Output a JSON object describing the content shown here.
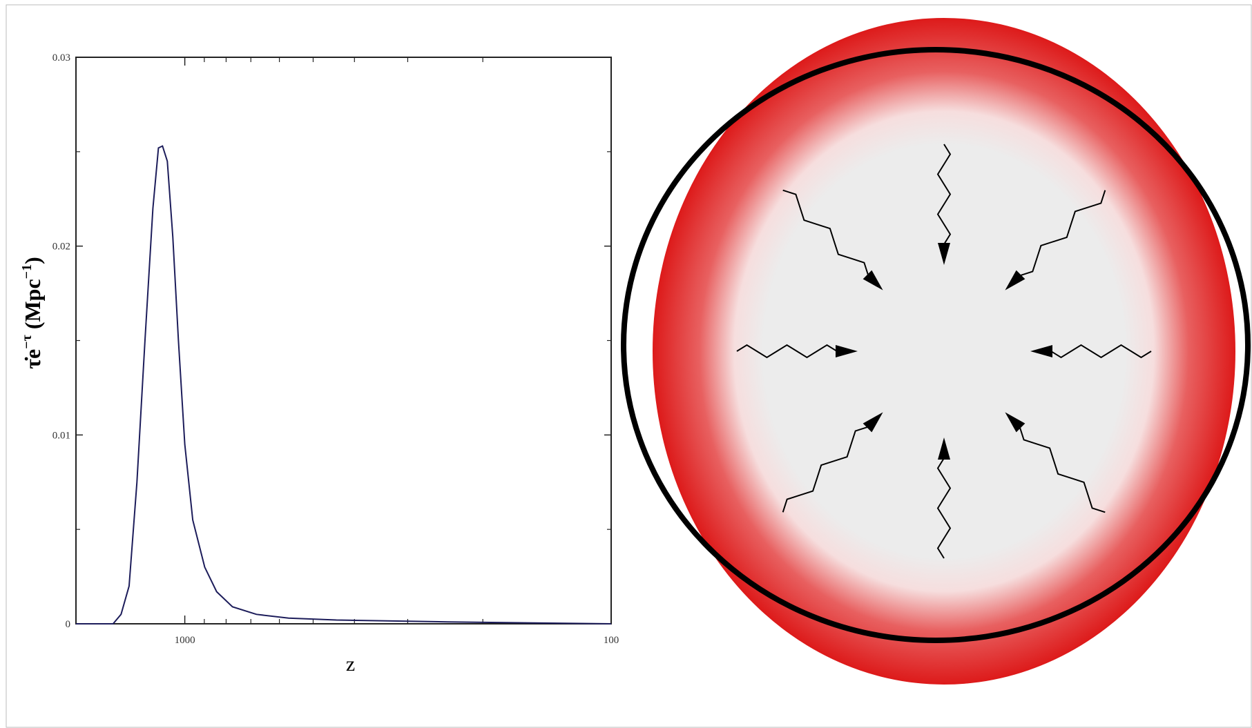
{
  "chart_data": {
    "type": "line",
    "xlabel": "z",
    "ylabel": [
      "τ̇e",
      "−τ",
      " (Mpc",
      "−1",
      ")"
    ],
    "x": [
      1800,
      1473,
      1411,
      1351,
      1295,
      1240,
      1188,
      1153,
      1128,
      1099,
      1067,
      1035,
      1000,
      958,
      898,
      842,
      773,
      679,
      571,
      441,
      242,
      100
    ],
    "values": [
      0,
      0,
      0.0005,
      0.002,
      0.0075,
      0.015,
      0.022,
      0.0252,
      0.0253,
      0.0245,
      0.0205,
      0.015,
      0.0095,
      0.0055,
      0.003,
      0.0017,
      0.0009,
      0.0005,
      0.0003,
      0.0002,
      0.0001,
      0
    ],
    "color": "#1c1c5a",
    "log_x": true,
    "xlim": [
      1800,
      100
    ],
    "xticks": [
      1000,
      100
    ],
    "x_minor_ticks": [
      900,
      800,
      700,
      600,
      500,
      400,
      300,
      200
    ],
    "ylim": [
      0,
      0.03
    ],
    "yticks": [
      0,
      0.01,
      0.02,
      0.03
    ],
    "y_minor_ticks": [
      0.005,
      0.015,
      0.025
    ]
  }
}
